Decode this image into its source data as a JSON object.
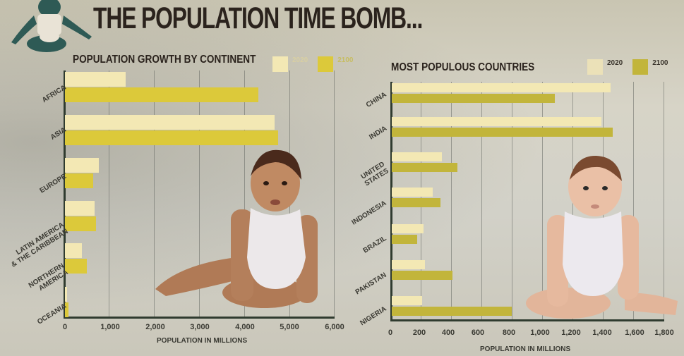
{
  "header": {
    "title": "THE POPULATION TIME BOMB..."
  },
  "colors": {
    "c2020": "#f3e8b4",
    "c2100_left": "#dcc93a",
    "c2100_right": "#c2b53b"
  },
  "chart_data": [
    {
      "type": "bar",
      "orientation": "horizontal",
      "title": "POPULATION GROWTH BY CONTINENT",
      "categories": [
        "AFRICA",
        "ASIA",
        "EUROPE",
        "LATIN AMERICA & THE CARIBBEAN",
        "NORTHERN AMERICA",
        "OCEANIA"
      ],
      "series": [
        {
          "name": "2020",
          "values": [
            1340,
            4640,
            750,
            650,
            370,
            43
          ]
        },
        {
          "name": "2100",
          "values": [
            4280,
            4720,
            630,
            680,
            490,
            75
          ]
        }
      ],
      "xlabel": "POPULATION IN MILLIONS",
      "ylabel": "",
      "xlim": [
        0,
        6000
      ],
      "xticks": [
        "0",
        "1,000",
        "2,000",
        "3,000",
        "4,000",
        "5,000",
        "6,000"
      ],
      "legend": [
        "2020",
        "2100"
      ],
      "legend_position": "top-right",
      "grid": true
    },
    {
      "type": "bar",
      "orientation": "horizontal",
      "title": "MOST POPULOUS COUNTRIES",
      "categories": [
        "CHINA",
        "INDIA",
        "UNITED STATES",
        "INDONESIA",
        "BRAZIL",
        "PAKISTAN",
        "NIGERIA"
      ],
      "series": [
        {
          "name": "2020",
          "values": [
            1440,
            1380,
            330,
            270,
            210,
            220,
            200
          ]
        },
        {
          "name": "2100",
          "values": [
            1070,
            1450,
            430,
            320,
            165,
            400,
            790
          ]
        }
      ],
      "xlabel": "POPULATION IN MILLIONS",
      "ylabel": "",
      "xlim": [
        0,
        1800
      ],
      "xticks": [
        "0",
        "200",
        "400",
        "600",
        "800",
        "1,000",
        "1,200",
        "1,400",
        "1,600",
        "1,800"
      ],
      "legend": [
        "2020",
        "2100"
      ],
      "legend_position": "top-right",
      "grid": true
    }
  ],
  "left": {
    "title": "POPULATION GROWTH BY CONTINENT",
    "legend": [
      "2020",
      "2100"
    ],
    "labels": [
      "AFRICA",
      "ASIA",
      "EUROPE",
      "LATIN AMERICA\n& THE CARIBBEAN",
      "NORTHERN\nAMERICA",
      "OCEANIA"
    ],
    "ticks": [
      "0",
      "1,000",
      "2,000",
      "3,000",
      "4,000",
      "5,000",
      "6,000"
    ],
    "xlabel": "POPULATION IN MILLIONS"
  },
  "right": {
    "title": "MOST POPULOUS COUNTRIES",
    "legend": [
      "2020",
      "2100"
    ],
    "labels": [
      "CHINA",
      "INDIA",
      "UNITED\nSTATES",
      "INDONESIA",
      "BRAZIL",
      "PAKISTAN",
      "NIGERIA"
    ],
    "ticks": [
      "0",
      "200",
      "400",
      "600",
      "800",
      "1,000",
      "1,200",
      "1,400",
      "1,600",
      "1,800"
    ],
    "xlabel": "POPULATION IN MILLIONS"
  },
  "images": {
    "baby_left": "baby-sitting-photo",
    "baby_right": "baby-sitting-photo"
  }
}
